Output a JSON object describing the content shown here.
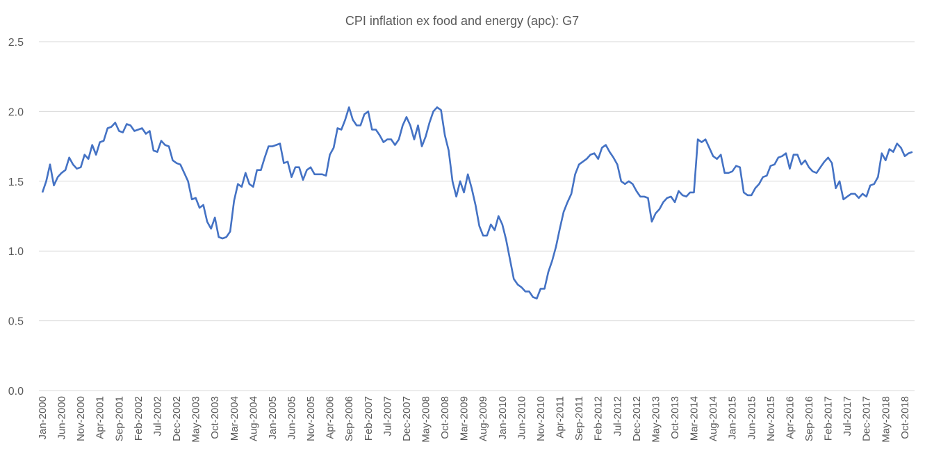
{
  "chart_data": {
    "type": "line",
    "title": "CPI inflation ex food and energy (apc): G7",
    "xlabel": "",
    "ylabel": "",
    "ylim": [
      0,
      2.5
    ],
    "yticks": [
      "0.0",
      "0.5",
      "1.0",
      "1.5",
      "2.0",
      "2.5"
    ],
    "grid": "horizontal",
    "legend": "none",
    "x_range": [
      "Jan-2000",
      "Dec-2018"
    ],
    "frequency": "monthly",
    "xtick_labels": [
      "Jan-2000",
      "Jun-2000",
      "Nov-2000",
      "Apr-2001",
      "Sep-2001",
      "Feb-2002",
      "Jul-2002",
      "Dec-2002",
      "May-2003",
      "Oct-2003",
      "Mar-2004",
      "Aug-2004",
      "Jan-2005",
      "Jun-2005",
      "Nov-2005",
      "Apr-2006",
      "Sep-2006",
      "Feb-2007",
      "Jul-2007",
      "Dec-2007",
      "May-2008",
      "Oct-2008",
      "Mar-2009",
      "Aug-2009",
      "Jan-2010",
      "Jun-2010",
      "Nov-2010",
      "Apr-2011",
      "Sep-2011",
      "Feb-2012",
      "Jul-2012",
      "Dec-2012",
      "May-2013",
      "Oct-2013",
      "Mar-2014",
      "Aug-2014",
      "Jan-2015",
      "Jun-2015",
      "Nov-2015",
      "Apr-2016",
      "Sep-2016",
      "Feb-2017",
      "Jul-2017",
      "Dec-2017",
      "May-2018",
      "Oct-2018"
    ],
    "series": [
      {
        "color": "#4472C4",
        "values": [
          1.42,
          1.5,
          1.62,
          1.47,
          1.53,
          1.56,
          1.58,
          1.67,
          1.62,
          1.59,
          1.6,
          1.69,
          1.66,
          1.76,
          1.69,
          1.78,
          1.79,
          1.88,
          1.89,
          1.92,
          1.86,
          1.85,
          1.91,
          1.9,
          1.86,
          1.87,
          1.88,
          1.84,
          1.86,
          1.72,
          1.71,
          1.79,
          1.76,
          1.75,
          1.65,
          1.63,
          1.62,
          1.56,
          1.5,
          1.37,
          1.38,
          1.31,
          1.33,
          1.21,
          1.16,
          1.24,
          1.1,
          1.09,
          1.1,
          1.14,
          1.36,
          1.48,
          1.46,
          1.56,
          1.48,
          1.46,
          1.58,
          1.58,
          1.67,
          1.75,
          1.75,
          1.76,
          1.77,
          1.63,
          1.64,
          1.53,
          1.6,
          1.6,
          1.51,
          1.58,
          1.6,
          1.55,
          1.55,
          1.55,
          1.54,
          1.69,
          1.74,
          1.88,
          1.87,
          1.94,
          2.03,
          1.94,
          1.9,
          1.9,
          1.98,
          2.0,
          1.87,
          1.87,
          1.83,
          1.78,
          1.8,
          1.8,
          1.76,
          1.8,
          1.9,
          1.96,
          1.9,
          1.8,
          1.9,
          1.75,
          1.82,
          1.92,
          2.0,
          2.03,
          2.01,
          1.83,
          1.72,
          1.5,
          1.39,
          1.5,
          1.42,
          1.55,
          1.45,
          1.33,
          1.18,
          1.11,
          1.11,
          1.19,
          1.15,
          1.25,
          1.19,
          1.08,
          0.94,
          0.8,
          0.76,
          0.74,
          0.71,
          0.71,
          0.67,
          0.66,
          0.73,
          0.73,
          0.85,
          0.93,
          1.03,
          1.16,
          1.28,
          1.35,
          1.41,
          1.55,
          1.62,
          1.64,
          1.66,
          1.69,
          1.7,
          1.66,
          1.74,
          1.76,
          1.71,
          1.67,
          1.62,
          1.5,
          1.48,
          1.5,
          1.48,
          1.43,
          1.39,
          1.39,
          1.38,
          1.21,
          1.27,
          1.3,
          1.35,
          1.38,
          1.39,
          1.35,
          1.43,
          1.4,
          1.39,
          1.42,
          1.42,
          1.8,
          1.78,
          1.8,
          1.74,
          1.68,
          1.66,
          1.69,
          1.56,
          1.56,
          1.57,
          1.61,
          1.6,
          1.42,
          1.4,
          1.4,
          1.45,
          1.48,
          1.53,
          1.54,
          1.61,
          1.62,
          1.67,
          1.68,
          1.7,
          1.59,
          1.69,
          1.69,
          1.62,
          1.65,
          1.6,
          1.57,
          1.56,
          1.6,
          1.64,
          1.67,
          1.63,
          1.45,
          1.5,
          1.37,
          1.39,
          1.41,
          1.41,
          1.38,
          1.41,
          1.39,
          1.47,
          1.48,
          1.53,
          1.7,
          1.65,
          1.73,
          1.71,
          1.77,
          1.74,
          1.68,
          1.7,
          1.71
        ]
      }
    ]
  }
}
